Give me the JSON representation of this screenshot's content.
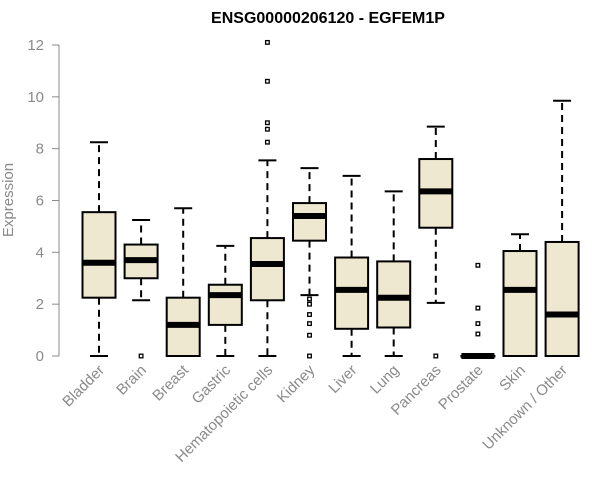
{
  "chart_data": {
    "type": "boxplot",
    "title": "ENSG00000206120 - EGFEM1P",
    "xlabel": "",
    "ylabel": "Expression",
    "ylim": [
      0,
      12
    ],
    "yticks": [
      0,
      2,
      4,
      6,
      8,
      10,
      12
    ],
    "grid": false,
    "colors": {
      "box_fill": "#efe8d0",
      "stroke": "#000000",
      "axis": "#8a8a8a"
    },
    "categories": [
      "Bladder",
      "Brain",
      "Breast",
      "Gastric",
      "Hematopoietic cells",
      "Kidney",
      "Liver",
      "Lung",
      "Pancreas",
      "Prostate",
      "Skin",
      "Unknown / Other"
    ],
    "boxes": [
      {
        "category": "Bladder",
        "whisker_low": 0,
        "q1": 2.25,
        "median": 3.6,
        "q3": 5.55,
        "whisker_high": 8.25,
        "outliers": []
      },
      {
        "category": "Brain",
        "whisker_low": 2.15,
        "q1": 3.0,
        "median": 3.7,
        "q3": 4.3,
        "whisker_high": 5.25,
        "outliers": [
          0
        ]
      },
      {
        "category": "Breast",
        "whisker_low": 0,
        "q1": 0,
        "median": 1.2,
        "q3": 2.25,
        "whisker_high": 5.7,
        "outliers": []
      },
      {
        "category": "Gastric",
        "whisker_low": 0,
        "q1": 1.2,
        "median": 2.35,
        "q3": 2.75,
        "whisker_high": 4.25,
        "outliers": []
      },
      {
        "category": "Hematopoietic cells",
        "whisker_low": 0,
        "q1": 2.15,
        "median": 3.55,
        "q3": 4.55,
        "whisker_high": 7.55,
        "outliers": [
          8.25,
          8.75,
          9.0,
          10.6,
          12.1
        ]
      },
      {
        "category": "Kidney",
        "whisker_low": 2.35,
        "q1": 4.45,
        "median": 5.4,
        "q3": 5.9,
        "whisker_high": 7.25,
        "outliers": [
          0,
          0.8,
          1.25,
          1.6,
          2.0,
          2.2
        ]
      },
      {
        "category": "Liver",
        "whisker_low": 0,
        "q1": 1.05,
        "median": 2.55,
        "q3": 3.8,
        "whisker_high": 6.95,
        "outliers": []
      },
      {
        "category": "Lung",
        "whisker_low": 0,
        "q1": 1.1,
        "median": 2.25,
        "q3": 3.65,
        "whisker_high": 6.35,
        "outliers": []
      },
      {
        "category": "Pancreas",
        "whisker_low": 2.05,
        "q1": 4.95,
        "median": 6.35,
        "q3": 7.6,
        "whisker_high": 8.85,
        "outliers": [
          0
        ]
      },
      {
        "category": "Prostate",
        "whisker_low": 0,
        "q1": 0,
        "median": 0,
        "q3": 0,
        "whisker_high": 0,
        "outliers": [
          0.85,
          1.25,
          1.85,
          3.5
        ]
      },
      {
        "category": "Skin",
        "whisker_low": 0,
        "q1": 0,
        "median": 2.55,
        "q3": 4.05,
        "whisker_high": 4.7,
        "outliers": []
      },
      {
        "category": "Unknown / Other",
        "whisker_low": 0,
        "q1": 0,
        "median": 1.6,
        "q3": 4.4,
        "whisker_high": 9.85,
        "outliers": []
      }
    ]
  }
}
